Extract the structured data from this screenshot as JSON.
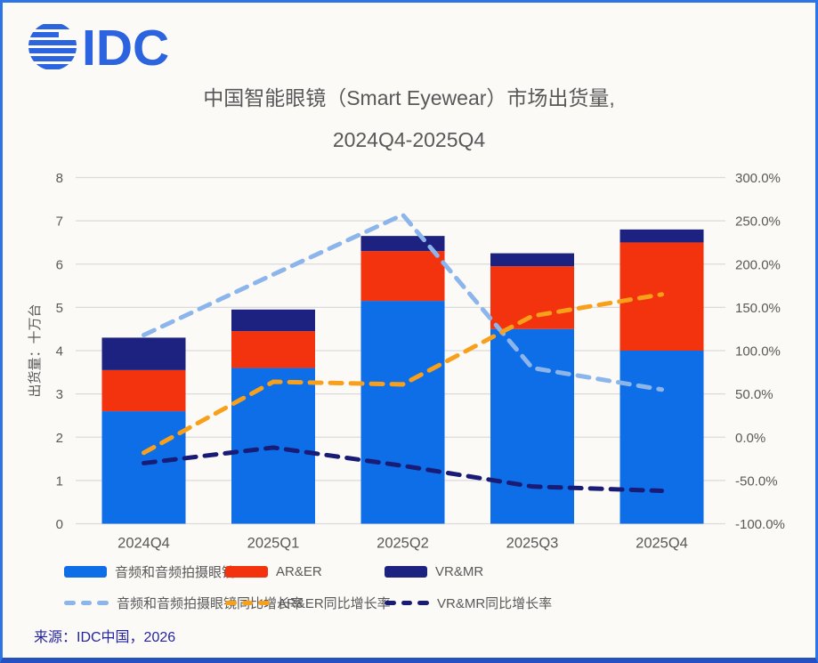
{
  "logo": {
    "text": "IDC"
  },
  "title": {
    "line1": "中国智能眼镜（Smart Eyewear）市场出货量,",
    "line2": "2024Q4-2025Q4"
  },
  "source": "来源：IDC中国，2026",
  "colors": {
    "background": "#FCFAF7",
    "frame_border": "#2D74E8",
    "frame_border_bottom": "#2551C0",
    "logo_blue": "#2B64DE",
    "title_text": "#585858",
    "axis_text": "#595959",
    "gridline": "#DBDBDB",
    "source_text": "#2424A0"
  },
  "chart_data": {
    "type": "combo-stacked-bar-line",
    "title": "中国智能眼镜（Smart Eyewear）市场出货量, 2024Q4-2025Q4",
    "categories": [
      "2024Q4",
      "2025Q1",
      "2025Q2",
      "2025Q3",
      "2025Q4"
    ],
    "bar_series": [
      {
        "name": "音频和音频拍摄眼镜",
        "color": "#0D6EE8",
        "values": [
          2.6,
          3.6,
          5.15,
          4.5,
          4.0
        ]
      },
      {
        "name": "AR&ER",
        "color": "#F2330D",
        "values": [
          0.95,
          0.85,
          1.15,
          1.45,
          2.5
        ]
      },
      {
        "name": "VR&MR",
        "color": "#1D217F",
        "values": [
          0.75,
          0.5,
          0.35,
          0.3,
          0.3
        ]
      }
    ],
    "bar_totals": [
      4.3,
      4.95,
      6.65,
      6.25,
      6.8
    ],
    "line_series": [
      {
        "name": "音频和音频拍摄眼镜同比增长率",
        "color": "#8BB5EB",
        "values_pct": [
          118,
          188,
          257,
          80,
          55
        ]
      },
      {
        "name": "AR&ER同比增长率",
        "color": "#F9A01B",
        "values_pct": [
          -18,
          64,
          61,
          140,
          165
        ]
      },
      {
        "name": "VR&MR同比增长率",
        "color": "#191C77",
        "values_pct": [
          -30,
          -12,
          -33,
          -57,
          -62
        ]
      }
    ],
    "left_axis": {
      "title": "出货量：十万台",
      "min": 0,
      "max": 8,
      "step": 1
    },
    "right_axis": {
      "min": -100,
      "max": 300,
      "step": 50,
      "format": "percent-1dp"
    },
    "grid": true,
    "legend_position": "bottom"
  }
}
